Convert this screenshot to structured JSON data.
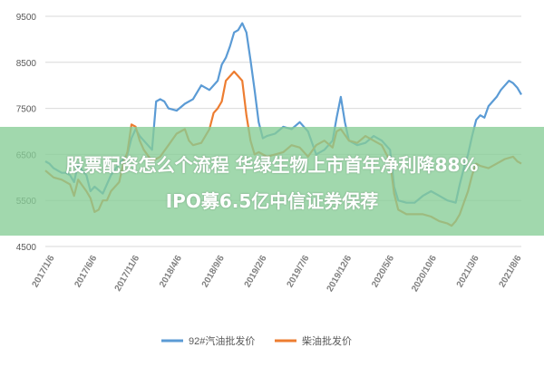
{
  "chart_data": {
    "type": "line",
    "title": "",
    "xlabel": "",
    "ylabel": "",
    "ylim": [
      4500,
      9500
    ],
    "yticks": [
      4500,
      5500,
      6500,
      7500,
      8500,
      9500
    ],
    "x_tick_labels": [
      "2017/1/6",
      "2017/6/6",
      "2017/11/6",
      "2018/4/6",
      "2018/9/6",
      "2019/2/6",
      "2019/7/6",
      "2019/12/6",
      "2020/5/6",
      "2020/10/6",
      "2021/3/6",
      "2021/8/6"
    ],
    "x_domain": [
      0,
      58
    ],
    "grid": {
      "horizontal": true,
      "vertical": false
    },
    "legend_position": "bottom",
    "series": [
      {
        "name": "92#汽油批发价",
        "color": "#5b9bd5",
        "points": [
          [
            0,
            6350
          ],
          [
            0.5,
            6300
          ],
          [
            1,
            6200
          ],
          [
            1.5,
            6150
          ],
          [
            2,
            6100
          ],
          [
            2.5,
            6100
          ],
          [
            3,
            6050
          ],
          [
            3.5,
            5900
          ],
          [
            4,
            6300
          ],
          [
            4.5,
            6150
          ],
          [
            5,
            6050
          ],
          [
            5.5,
            5700
          ],
          [
            6,
            5800
          ],
          [
            7,
            5650
          ],
          [
            8,
            6050
          ],
          [
            9,
            6300
          ],
          [
            10,
            6500
          ],
          [
            10.5,
            6850
          ],
          [
            11,
            7050
          ],
          [
            11.5,
            6900
          ],
          [
            12,
            6800
          ],
          [
            13,
            6600
          ],
          [
            13.5,
            7650
          ],
          [
            14,
            7700
          ],
          [
            14.5,
            7650
          ],
          [
            15,
            7500
          ],
          [
            16,
            7450
          ],
          [
            17,
            7600
          ],
          [
            18,
            7700
          ],
          [
            19,
            8000
          ],
          [
            20,
            7900
          ],
          [
            21,
            8100
          ],
          [
            21.5,
            8450
          ],
          [
            22,
            8600
          ],
          [
            22.5,
            8850
          ],
          [
            23,
            9150
          ],
          [
            23.5,
            9200
          ],
          [
            24,
            9350
          ],
          [
            24.5,
            9150
          ],
          [
            25,
            8550
          ],
          [
            25.5,
            7900
          ],
          [
            26,
            7200
          ],
          [
            26.5,
            6850
          ],
          [
            27,
            6900
          ],
          [
            28,
            6950
          ],
          [
            29,
            7100
          ],
          [
            30,
            7050
          ],
          [
            31,
            7200
          ],
          [
            32,
            7000
          ],
          [
            33,
            6500
          ],
          [
            34,
            6600
          ],
          [
            35,
            6800
          ],
          [
            35.5,
            7300
          ],
          [
            36,
            7750
          ],
          [
            36.5,
            7200
          ],
          [
            37,
            6800
          ],
          [
            38,
            6700
          ],
          [
            39,
            6750
          ],
          [
            40,
            6900
          ],
          [
            41,
            6800
          ],
          [
            42,
            6600
          ],
          [
            42.5,
            5800
          ],
          [
            43,
            5500
          ],
          [
            44,
            5450
          ],
          [
            45,
            5450
          ],
          [
            46,
            5600
          ],
          [
            47,
            5700
          ],
          [
            48,
            5600
          ],
          [
            49,
            5500
          ],
          [
            50,
            5450
          ],
          [
            50.5,
            5850
          ],
          [
            51,
            6200
          ],
          [
            51.5,
            6500
          ],
          [
            52,
            6900
          ],
          [
            52.5,
            7250
          ],
          [
            53,
            7350
          ],
          [
            53.5,
            7300
          ],
          [
            54,
            7550
          ],
          [
            54.5,
            7650
          ],
          [
            55,
            7750
          ],
          [
            55.5,
            7900
          ],
          [
            56,
            8000
          ],
          [
            56.5,
            8100
          ],
          [
            57,
            8050
          ],
          [
            57.5,
            7950
          ],
          [
            58,
            7800
          ]
        ]
      },
      {
        "name": "柴油批发价",
        "color": "#ed7d31",
        "points": [
          [
            0,
            6150
          ],
          [
            1,
            6000
          ],
          [
            2,
            5950
          ],
          [
            3,
            5850
          ],
          [
            3.5,
            5600
          ],
          [
            4,
            5950
          ],
          [
            5,
            5700
          ],
          [
            5.5,
            5550
          ],
          [
            6,
            5250
          ],
          [
            6.5,
            5300
          ],
          [
            7,
            5500
          ],
          [
            7.5,
            5500
          ],
          [
            8,
            5700
          ],
          [
            9,
            5900
          ],
          [
            9.5,
            6300
          ],
          [
            10,
            6550
          ],
          [
            10.5,
            7150
          ],
          [
            11,
            7100
          ],
          [
            11.5,
            6800
          ],
          [
            12,
            6600
          ],
          [
            13,
            6350
          ],
          [
            14,
            6450
          ],
          [
            15,
            6700
          ],
          [
            16,
            6950
          ],
          [
            17,
            7050
          ],
          [
            17.5,
            6800
          ],
          [
            18,
            6700
          ],
          [
            19,
            6750
          ],
          [
            20,
            7050
          ],
          [
            20.5,
            7400
          ],
          [
            21,
            7500
          ],
          [
            21.5,
            7650
          ],
          [
            22,
            8100
          ],
          [
            22.5,
            8200
          ],
          [
            23,
            8300
          ],
          [
            23.5,
            8200
          ],
          [
            24,
            8100
          ],
          [
            24.5,
            7350
          ],
          [
            25,
            6800
          ],
          [
            25.5,
            6500
          ],
          [
            26,
            6550
          ],
          [
            27,
            6450
          ],
          [
            28,
            6500
          ],
          [
            29,
            6550
          ],
          [
            30,
            6700
          ],
          [
            31,
            6650
          ],
          [
            32,
            6450
          ],
          [
            33,
            6700
          ],
          [
            34,
            6800
          ],
          [
            35,
            6650
          ],
          [
            35.5,
            7000
          ],
          [
            36,
            7050
          ],
          [
            37,
            6800
          ],
          [
            38,
            6750
          ],
          [
            39,
            6900
          ],
          [
            40,
            6800
          ],
          [
            41,
            6700
          ],
          [
            42,
            6350
          ],
          [
            42.5,
            5650
          ],
          [
            43,
            5300
          ],
          [
            44,
            5200
          ],
          [
            45,
            5200
          ],
          [
            46,
            5200
          ],
          [
            47,
            5150
          ],
          [
            48,
            5050
          ],
          [
            49,
            5000
          ],
          [
            49.5,
            4950
          ],
          [
            50,
            5050
          ],
          [
            50.5,
            5200
          ],
          [
            51,
            5450
          ],
          [
            51.5,
            5700
          ],
          [
            52,
            6050
          ],
          [
            52.5,
            6300
          ],
          [
            53,
            6250
          ],
          [
            54,
            6200
          ],
          [
            55,
            6300
          ],
          [
            56,
            6400
          ],
          [
            57,
            6450
          ],
          [
            57.5,
            6350
          ],
          [
            58,
            6300
          ]
        ]
      }
    ]
  },
  "banner": {
    "line1": "股票配资怎么个流程 华绿生物上市首年净利降88%",
    "line2": "IPO募6.5亿中信证券保荐"
  },
  "colors": {
    "grid": "#d9d9d9",
    "axis_text": "#595959",
    "banner_bg": "#87cd96"
  }
}
